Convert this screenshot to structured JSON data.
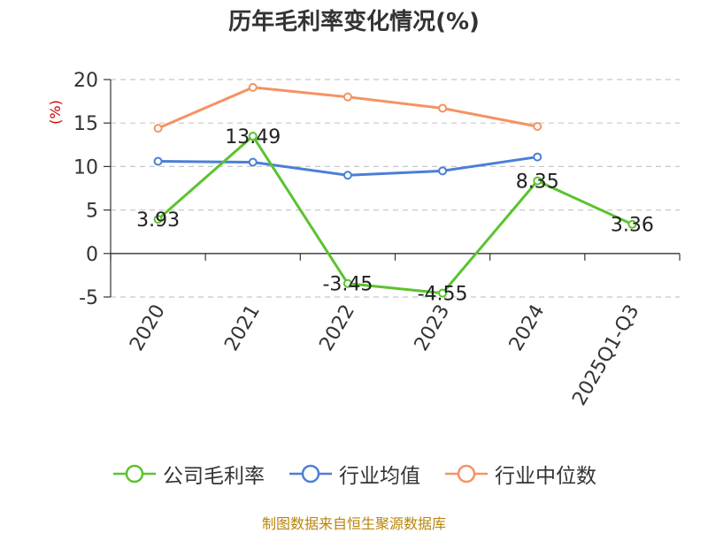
{
  "chart_data": {
    "type": "line",
    "title": "历年毛利率变化情况(%)",
    "ylabel": "(%)",
    "categories": [
      "2020",
      "2021",
      "2022",
      "2023",
      "2024",
      "2025Q1-Q3"
    ],
    "ylim": [
      -5,
      20
    ],
    "yticks": [
      20,
      15,
      10,
      5,
      0,
      -5
    ],
    "grid": true,
    "legend_position": "bottom",
    "series": [
      {
        "name": "公司毛利率",
        "color": "#5bc32e",
        "values": [
          3.93,
          13.49,
          -3.45,
          -4.55,
          8.35,
          3.36
        ],
        "labels": [
          "3.93",
          "13.49",
          "-3.45",
          "-4.55",
          "8.35",
          "3.36"
        ]
      },
      {
        "name": "行业均值",
        "color": "#4a7fd8",
        "values": [
          10.6,
          10.5,
          9.0,
          9.5,
          11.1,
          null
        ]
      },
      {
        "name": "行业中位数",
        "color": "#f59263",
        "values": [
          14.4,
          19.1,
          18.0,
          16.7,
          14.6,
          null
        ]
      }
    ],
    "source": "制图数据来自恒生聚源数据库"
  }
}
